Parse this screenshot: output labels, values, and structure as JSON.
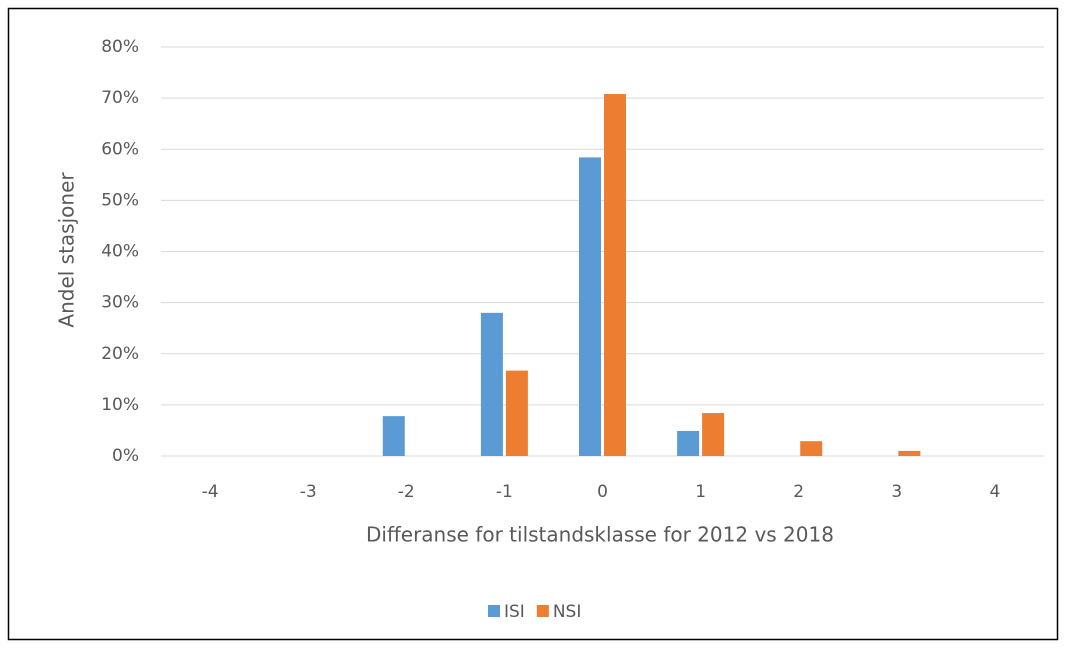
{
  "chart_data": {
    "type": "bar",
    "x_label": "Differanse for tilstandsklasse for 2012 vs 2018",
    "y_label": "Andel stasjoner",
    "categories": [
      "-4",
      "-3",
      "-2",
      "-1",
      "0",
      "1",
      "2",
      "3",
      "4"
    ],
    "series": [
      {
        "name": "ISI",
        "color": "#5b9bd5",
        "values": [
          0,
          0,
          7.8,
          28.0,
          58.4,
          4.9,
          0,
          0,
          0
        ]
      },
      {
        "name": "NSI",
        "color": "#ed7d31",
        "values": [
          0,
          0,
          0,
          16.7,
          70.8,
          8.4,
          2.9,
          1.0,
          0
        ]
      }
    ],
    "ylim": [
      0,
      80
    ],
    "yticks": [
      {
        "value": 0,
        "label": "0%"
      },
      {
        "value": 10,
        "label": "10%"
      },
      {
        "value": 20,
        "label": "20%"
      },
      {
        "value": 30,
        "label": "30%"
      },
      {
        "value": 40,
        "label": "40%"
      },
      {
        "value": 50,
        "label": "50%"
      },
      {
        "value": 60,
        "label": "60%"
      },
      {
        "value": 70,
        "label": "70%"
      },
      {
        "value": 80,
        "label": "80%"
      }
    ],
    "grid": true,
    "legend": "bottom"
  }
}
